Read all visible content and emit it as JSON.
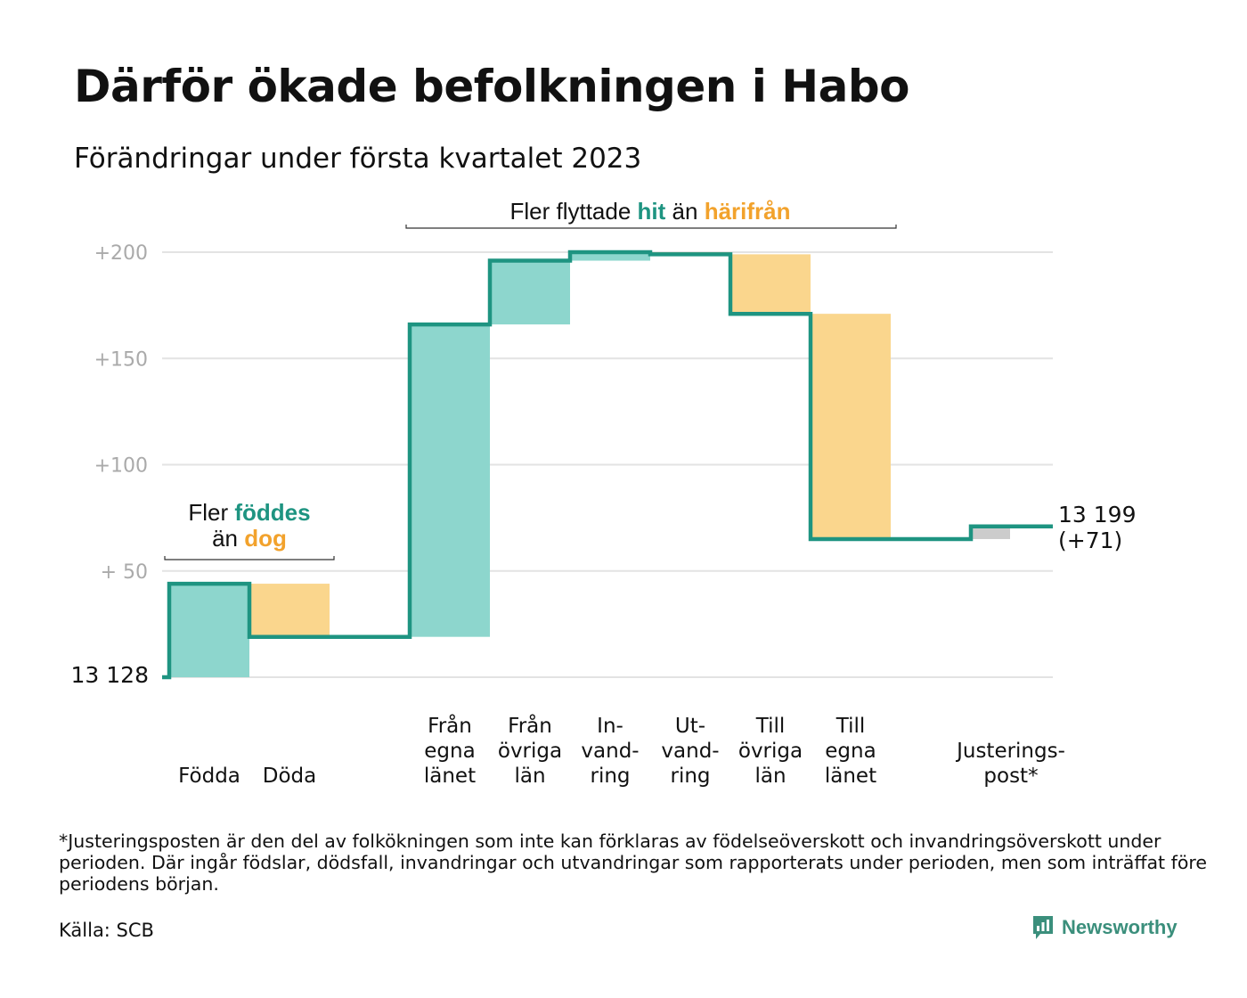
{
  "title": "Därför ökade befolkningen i Habo",
  "subtitle": "Förändringar under första kvartalet 2023",
  "colors": {
    "line": "#1e9481",
    "increase": "#8dd6cd",
    "decrease": "#fad68d",
    "adjustment": "#cccccc",
    "green_text": "#1e9481",
    "orange_text": "#f2a22c",
    "grid": "#e3e3e3",
    "tick_text": "#aaaaaa",
    "brand": "#3b8f7c"
  },
  "chart_data": {
    "type": "bar",
    "subtype": "waterfall",
    "baseline": 0,
    "start_label": "13 128",
    "end_label_line1": "13 199",
    "end_label_line2": "(+71)",
    "y_ticks": [
      {
        "value": 50,
        "label": "+ 50"
      },
      {
        "value": 100,
        "label": "+100"
      },
      {
        "value": 150,
        "label": "+150"
      },
      {
        "value": 200,
        "label": "+200"
      }
    ],
    "ylim": [
      0,
      200
    ],
    "grid": true,
    "categories": [
      {
        "label": [
          "Födda"
        ],
        "change": 44,
        "kind": "increase"
      },
      {
        "label": [
          "Döda"
        ],
        "change": -25,
        "kind": "decrease"
      },
      {
        "label": [],
        "change": 0,
        "kind": "gap"
      },
      {
        "label": [
          "Från",
          "egna",
          "länet"
        ],
        "change": 147,
        "kind": "increase"
      },
      {
        "label": [
          "Från",
          "övriga",
          "län"
        ],
        "change": 30,
        "kind": "increase"
      },
      {
        "label": [
          "In-",
          "vand-",
          "ring"
        ],
        "change": 4,
        "kind": "increase"
      },
      {
        "label": [
          "Ut-",
          "vand-",
          "ring"
        ],
        "change": -1,
        "kind": "decrease"
      },
      {
        "label": [
          "Till",
          "övriga",
          "län"
        ],
        "change": -28,
        "kind": "decrease"
      },
      {
        "label": [
          "Till",
          "egna",
          "länet"
        ],
        "change": -106,
        "kind": "decrease"
      },
      {
        "label": [],
        "change": 0,
        "kind": "gap"
      },
      {
        "label": [
          "Justerings-",
          "post*"
        ],
        "change": 6,
        "kind": "adjustment"
      }
    ],
    "annotations": [
      {
        "id": "birth",
        "parts": [
          [
            {
              "text": "Fler ",
              "style": "plain"
            },
            {
              "text": "föddes",
              "style": "green"
            }
          ],
          [
            {
              "text": "än ",
              "style": "plain"
            },
            {
              "text": "dog",
              "style": "orange"
            }
          ]
        ]
      },
      {
        "id": "migration",
        "parts": [
          [
            {
              "text": "Fler flyttade ",
              "style": "plain"
            },
            {
              "text": "hit",
              "style": "green"
            },
            {
              "text": " än ",
              "style": "plain"
            },
            {
              "text": "härifrån",
              "style": "orange"
            }
          ]
        ]
      }
    ]
  },
  "footnote": "*Justeringsposten är den del av folkökningen som inte kan förklaras av födelseöverskott och invandringsöverskott under perioden. Där ingår födslar, dödsfall, invandringar och utvandringar som rapporterats under perioden, men som inträffat före periodens början.",
  "source": "Källa: SCB",
  "brand": {
    "name": "Newsworthy",
    "icon": "bar-chart-speech-icon"
  }
}
